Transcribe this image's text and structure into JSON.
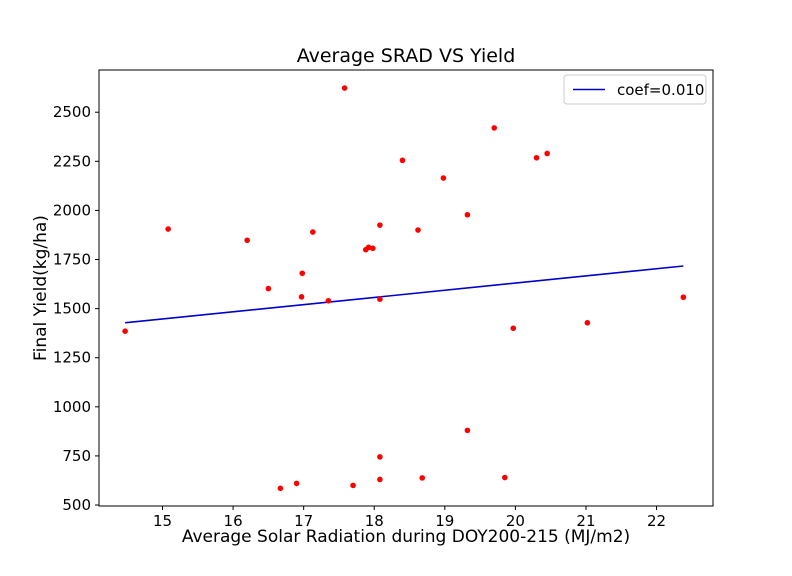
{
  "chart_data": {
    "type": "scatter",
    "title": "Average SRAD VS Yield",
    "xlabel": "Average Solar Radiation during DOY200-215 (MJ/m2)",
    "ylabel": "Final Yield(kg/ha)",
    "xlim": [
      14.1,
      22.8
    ],
    "ylim": [
      495,
      2715
    ],
    "xticks": [
      15,
      16,
      17,
      18,
      19,
      20,
      21,
      22
    ],
    "yticks": [
      500,
      750,
      1000,
      1250,
      1500,
      1750,
      2000,
      2250,
      2500
    ],
    "grid": false,
    "legend_position": "top-right",
    "colors": {
      "points": "#ff0000",
      "fit_line": "#0000cc",
      "axes": "#000000"
    },
    "points": [
      {
        "x": 14.47,
        "y": 1385
      },
      {
        "x": 15.08,
        "y": 1905
      },
      {
        "x": 16.2,
        "y": 1848
      },
      {
        "x": 16.5,
        "y": 1602
      },
      {
        "x": 16.67,
        "y": 585
      },
      {
        "x": 16.9,
        "y": 610
      },
      {
        "x": 16.97,
        "y": 1560
      },
      {
        "x": 16.98,
        "y": 1680
      },
      {
        "x": 17.13,
        "y": 1890
      },
      {
        "x": 17.35,
        "y": 1540
      },
      {
        "x": 17.58,
        "y": 2623
      },
      {
        "x": 17.7,
        "y": 600
      },
      {
        "x": 17.88,
        "y": 1800
      },
      {
        "x": 17.92,
        "y": 1812
      },
      {
        "x": 17.98,
        "y": 1807
      },
      {
        "x": 18.08,
        "y": 745
      },
      {
        "x": 18.08,
        "y": 630
      },
      {
        "x": 18.08,
        "y": 1925
      },
      {
        "x": 18.08,
        "y": 1548
      },
      {
        "x": 18.4,
        "y": 2255
      },
      {
        "x": 18.62,
        "y": 1900
      },
      {
        "x": 18.68,
        "y": 638
      },
      {
        "x": 18.98,
        "y": 2165
      },
      {
        "x": 19.32,
        "y": 1978
      },
      {
        "x": 19.32,
        "y": 880
      },
      {
        "x": 19.7,
        "y": 2420
      },
      {
        "x": 19.85,
        "y": 640
      },
      {
        "x": 19.97,
        "y": 1400
      },
      {
        "x": 20.3,
        "y": 2268
      },
      {
        "x": 20.45,
        "y": 2290
      },
      {
        "x": 21.02,
        "y": 1428
      },
      {
        "x": 22.38,
        "y": 1558
      }
    ],
    "fit_line": {
      "name": "coef=0.010",
      "x": [
        14.47,
        22.38
      ],
      "y": [
        1428,
        1717
      ]
    }
  }
}
